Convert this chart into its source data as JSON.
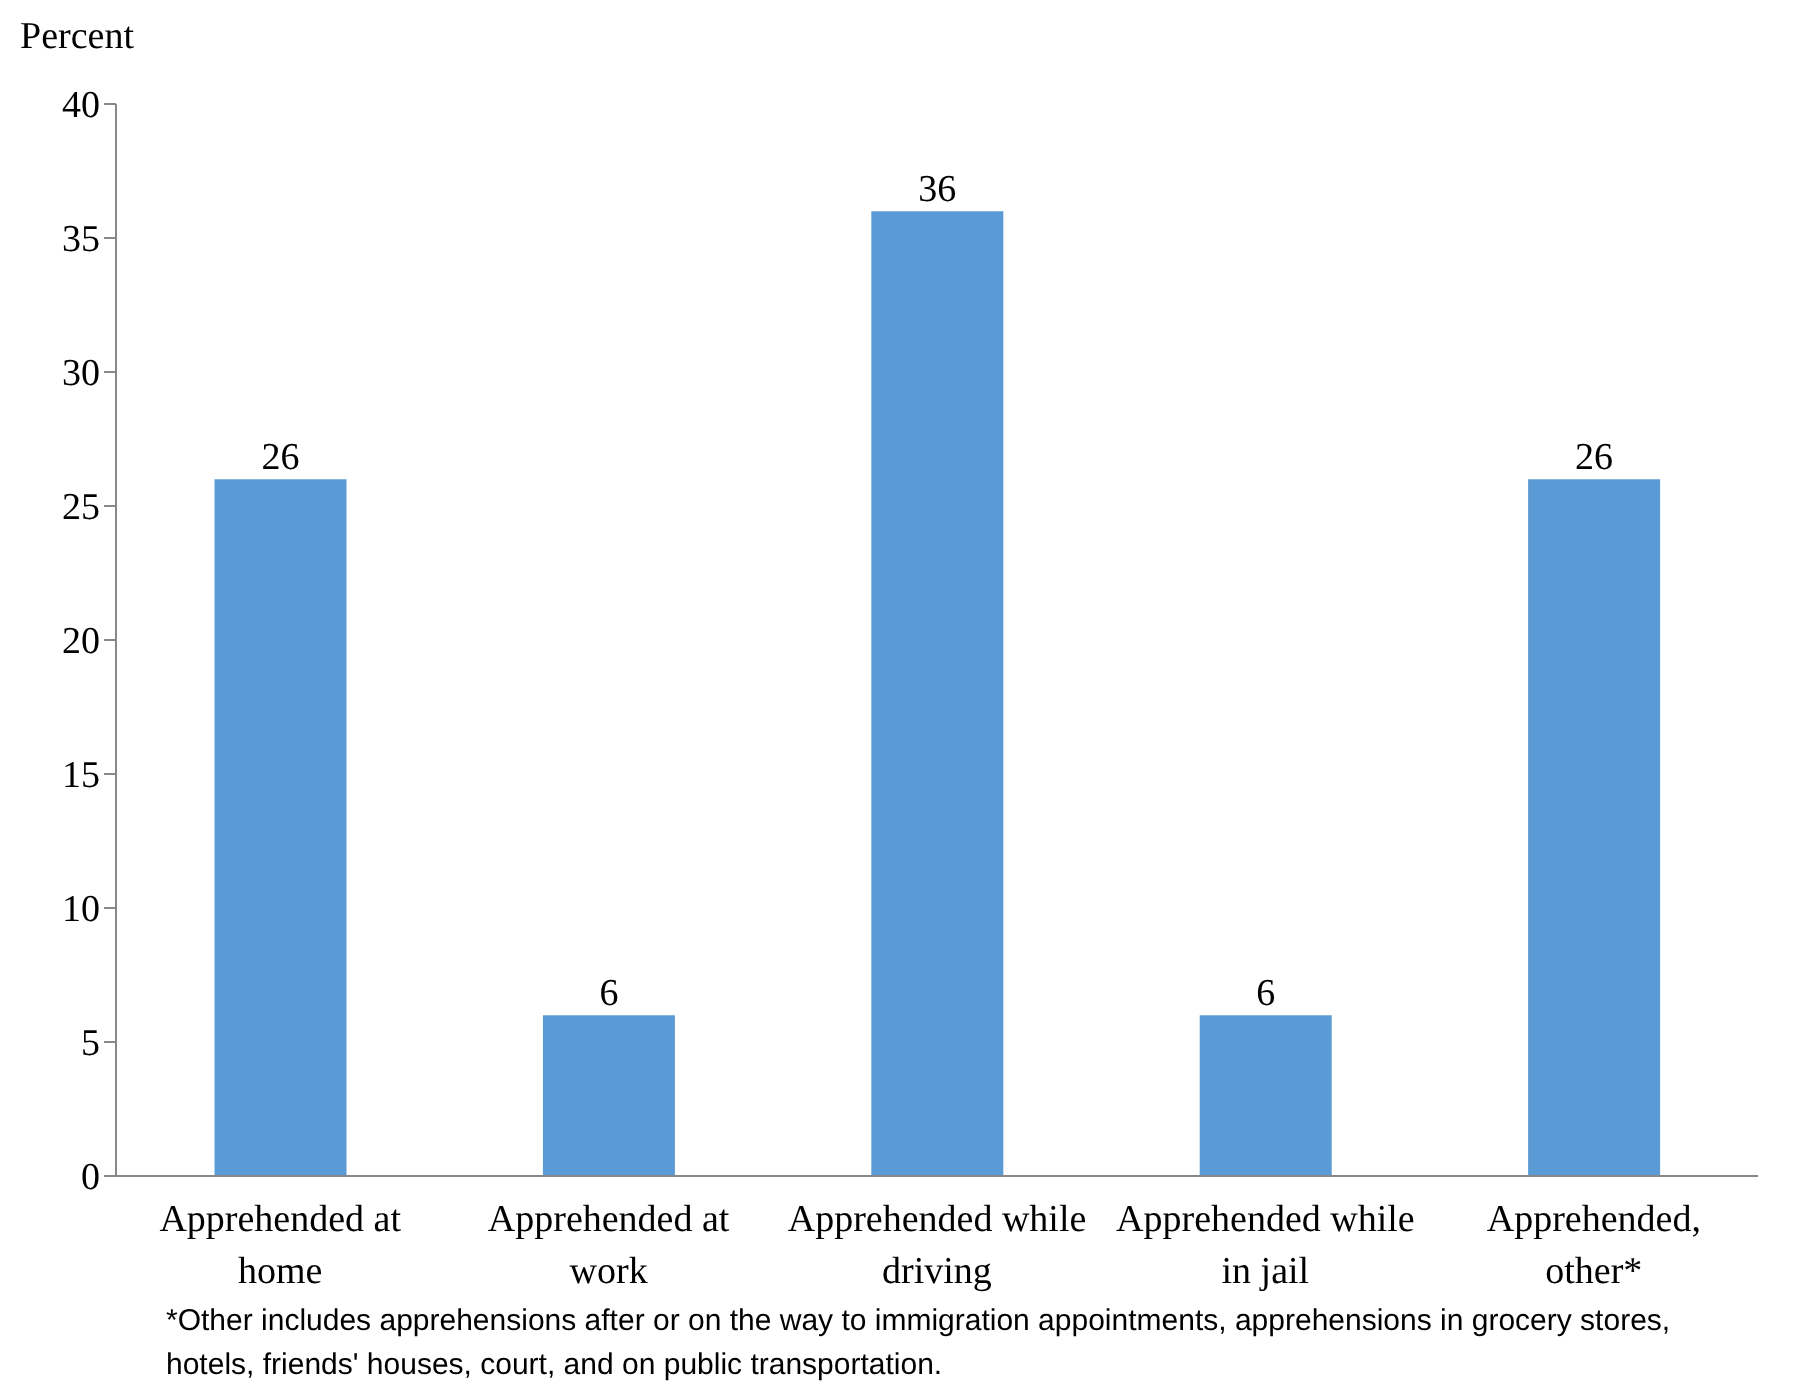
{
  "chart_data": {
    "type": "bar",
    "ylabel": "Percent",
    "categories": [
      "Apprehended at home",
      "Apprehended at work",
      "Apprehended while driving",
      "Apprehended while in jail",
      "Apprehended, other*"
    ],
    "values": [
      26,
      6,
      36,
      6,
      26
    ],
    "color": "#5b9bd5",
    "ylim": [
      0,
      40
    ],
    "yticks": [
      0,
      5,
      10,
      15,
      20,
      25,
      30,
      35,
      40
    ],
    "grid": false,
    "data_labels": true,
    "legend": false,
    "annotations": [
      "*Other includes apprehensions after or on the way to immigration appointments, apprehensions in grocery stores, hotels, friends' houses, court, and on public transportation."
    ]
  }
}
